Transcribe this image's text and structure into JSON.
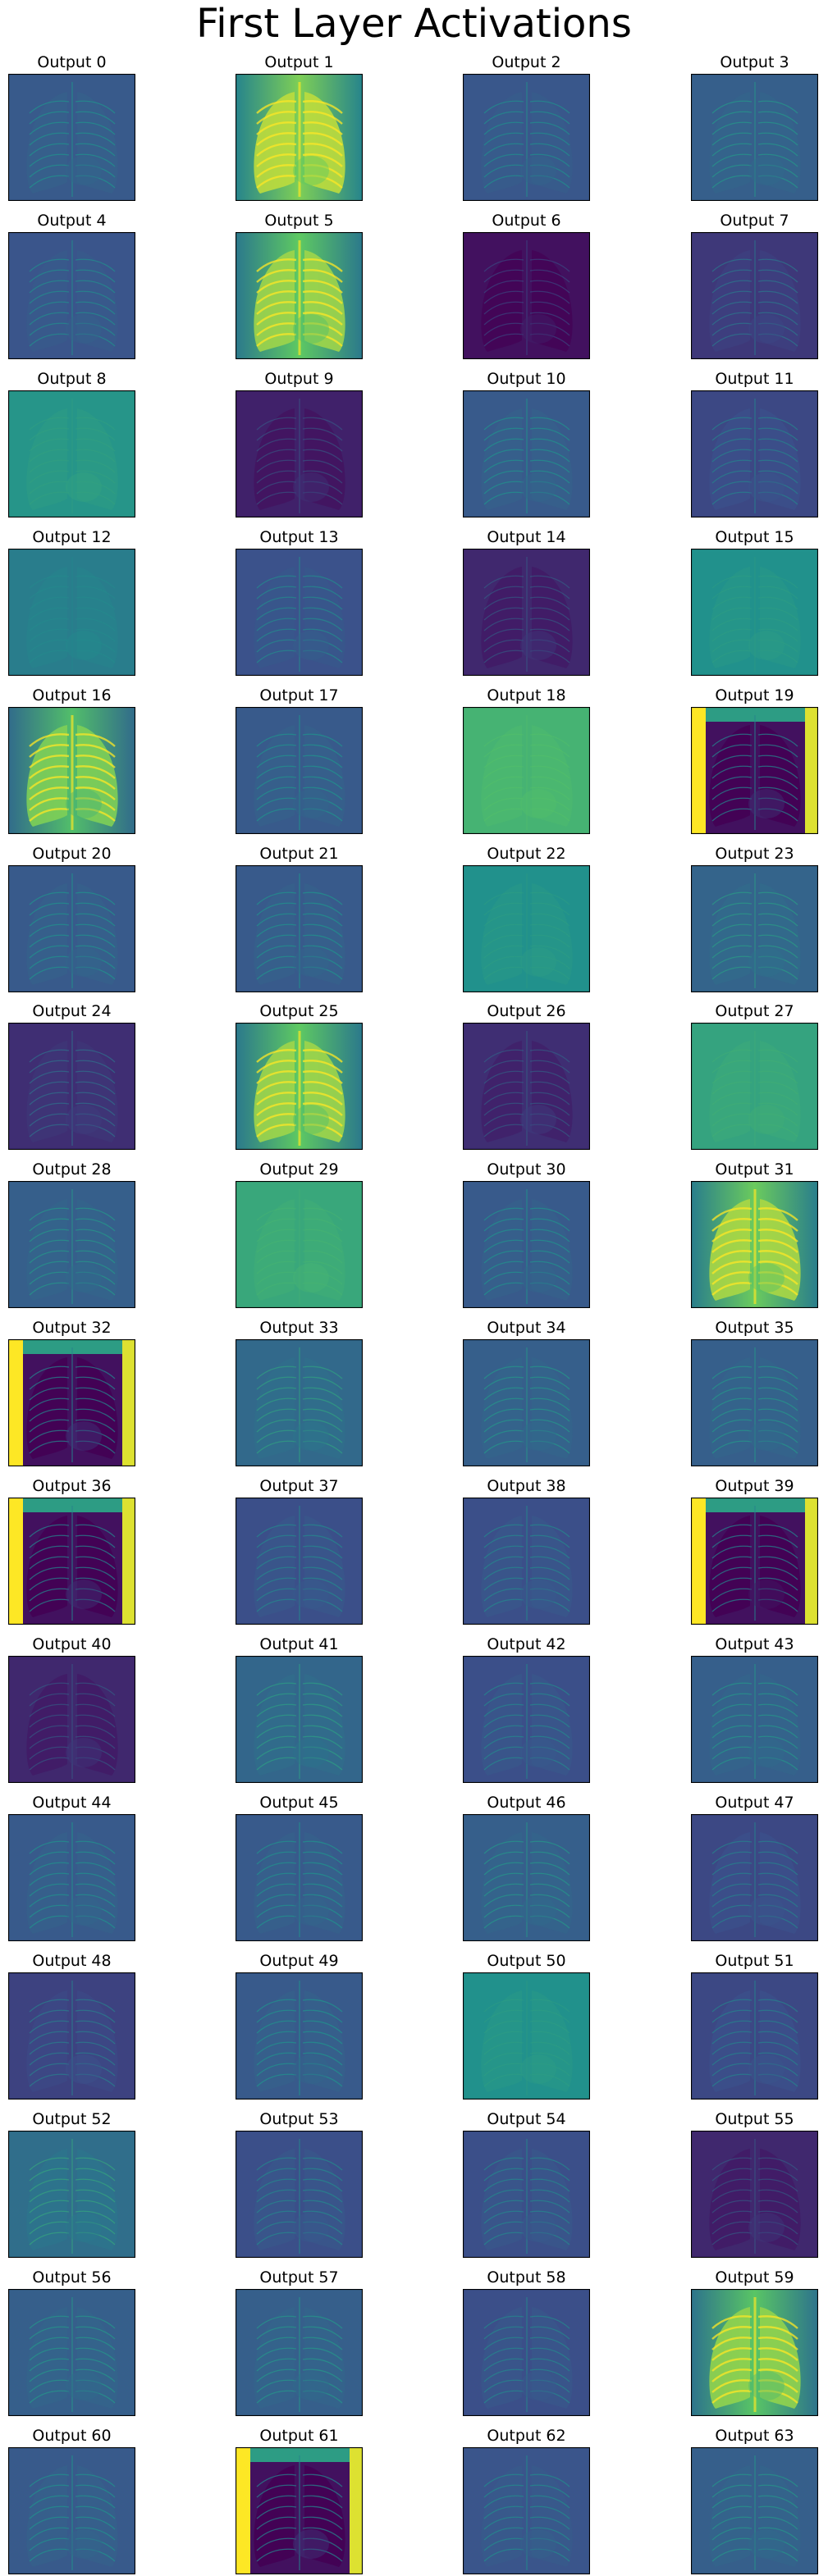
{
  "figure_title": "First Layer Activations",
  "colormap": "viridis",
  "colors": {
    "v0": "#440154",
    "v25": "#3b528b",
    "v50": "#21918c",
    "v75": "#5ec962",
    "v100": "#fde725",
    "frame": "#000000",
    "background": "#ffffff"
  },
  "panels": [
    {
      "label": "Output 0",
      "style": "edge",
      "level": 0.28
    },
    {
      "label": "Output 1",
      "style": "bright",
      "level": 0.65
    },
    {
      "label": "Output 2",
      "style": "edge",
      "level": 0.27
    },
    {
      "label": "Output 3",
      "style": "edge",
      "level": 0.3
    },
    {
      "label": "Output 4",
      "style": "edge",
      "level": 0.26
    },
    {
      "label": "Output 5",
      "style": "bright",
      "level": 0.6
    },
    {
      "label": "Output 6",
      "style": "dark",
      "level": 0.05
    },
    {
      "label": "Output 7",
      "style": "edge",
      "level": 0.17
    },
    {
      "label": "Output 8",
      "style": "flat",
      "level": 0.52
    },
    {
      "label": "Output 9",
      "style": "dark",
      "level": 0.1
    },
    {
      "label": "Output 10",
      "style": "edge",
      "level": 0.28
    },
    {
      "label": "Output 11",
      "style": "edge",
      "level": 0.22
    },
    {
      "label": "Output 12",
      "style": "flat",
      "level": 0.42
    },
    {
      "label": "Output 13",
      "style": "edge",
      "level": 0.25
    },
    {
      "label": "Output 14",
      "style": "dark",
      "level": 0.12
    },
    {
      "label": "Output 15",
      "style": "flat",
      "level": 0.5
    },
    {
      "label": "Output 16",
      "style": "bright",
      "level": 0.55
    },
    {
      "label": "Output 17",
      "style": "edge",
      "level": 0.28
    },
    {
      "label": "Output 18",
      "style": "flat",
      "level": 0.65
    },
    {
      "label": "Output 19",
      "style": "inverted",
      "level": 0.1
    },
    {
      "label": "Output 20",
      "style": "edge",
      "level": 0.28
    },
    {
      "label": "Output 21",
      "style": "edge",
      "level": 0.28
    },
    {
      "label": "Output 22",
      "style": "flat",
      "level": 0.5
    },
    {
      "label": "Output 23",
      "style": "edge",
      "level": 0.32
    },
    {
      "label": "Output 24",
      "style": "edge",
      "level": 0.14
    },
    {
      "label": "Output 25",
      "style": "bright",
      "level": 0.6
    },
    {
      "label": "Output 26",
      "style": "dark",
      "level": 0.14
    },
    {
      "label": "Output 27",
      "style": "flat",
      "level": 0.58
    },
    {
      "label": "Output 28",
      "style": "edge",
      "level": 0.3
    },
    {
      "label": "Output 29",
      "style": "flat",
      "level": 0.6
    },
    {
      "label": "Output 30",
      "style": "edge",
      "level": 0.28
    },
    {
      "label": "Output 31",
      "style": "bright",
      "level": 0.62
    },
    {
      "label": "Output 32",
      "style": "inverted",
      "level": 0.12
    },
    {
      "label": "Output 33",
      "style": "edge",
      "level": 0.34
    },
    {
      "label": "Output 34",
      "style": "edge",
      "level": 0.3
    },
    {
      "label": "Output 35",
      "style": "edge",
      "level": 0.3
    },
    {
      "label": "Output 36",
      "style": "inverted",
      "level": 0.1
    },
    {
      "label": "Output 37",
      "style": "edge",
      "level": 0.24
    },
    {
      "label": "Output 38",
      "style": "edge",
      "level": 0.24
    },
    {
      "label": "Output 39",
      "style": "inverted",
      "level": 0.02
    },
    {
      "label": "Output 40",
      "style": "dark",
      "level": 0.12
    },
    {
      "label": "Output 41",
      "style": "edge",
      "level": 0.33
    },
    {
      "label": "Output 42",
      "style": "edge",
      "level": 0.24
    },
    {
      "label": "Output 43",
      "style": "edge",
      "level": 0.3
    },
    {
      "label": "Output 44",
      "style": "edge",
      "level": 0.28
    },
    {
      "label": "Output 45",
      "style": "edge",
      "level": 0.28
    },
    {
      "label": "Output 46",
      "style": "edge",
      "level": 0.3
    },
    {
      "label": "Output 47",
      "style": "edge",
      "level": 0.22
    },
    {
      "label": "Output 48",
      "style": "edge",
      "level": 0.2
    },
    {
      "label": "Output 49",
      "style": "edge",
      "level": 0.28
    },
    {
      "label": "Output 50",
      "style": "flat",
      "level": 0.5
    },
    {
      "label": "Output 51",
      "style": "edge",
      "level": 0.22
    },
    {
      "label": "Output 52",
      "style": "edge",
      "level": 0.36
    },
    {
      "label": "Output 53",
      "style": "edge",
      "level": 0.24
    },
    {
      "label": "Output 54",
      "style": "edge",
      "level": 0.24
    },
    {
      "label": "Output 55",
      "style": "dark",
      "level": 0.12
    },
    {
      "label": "Output 56",
      "style": "edge",
      "level": 0.3
    },
    {
      "label": "Output 57",
      "style": "edge",
      "level": 0.3
    },
    {
      "label": "Output 58",
      "style": "edge",
      "level": 0.24
    },
    {
      "label": "Output 59",
      "style": "bright",
      "level": 0.58
    },
    {
      "label": "Output 60",
      "style": "edge",
      "level": 0.28
    },
    {
      "label": "Output 61",
      "style": "inverted",
      "level": 0.12
    },
    {
      "label": "Output 62",
      "style": "edge",
      "level": 0.26
    },
    {
      "label": "Output 63",
      "style": "edge",
      "level": 0.3
    }
  ]
}
